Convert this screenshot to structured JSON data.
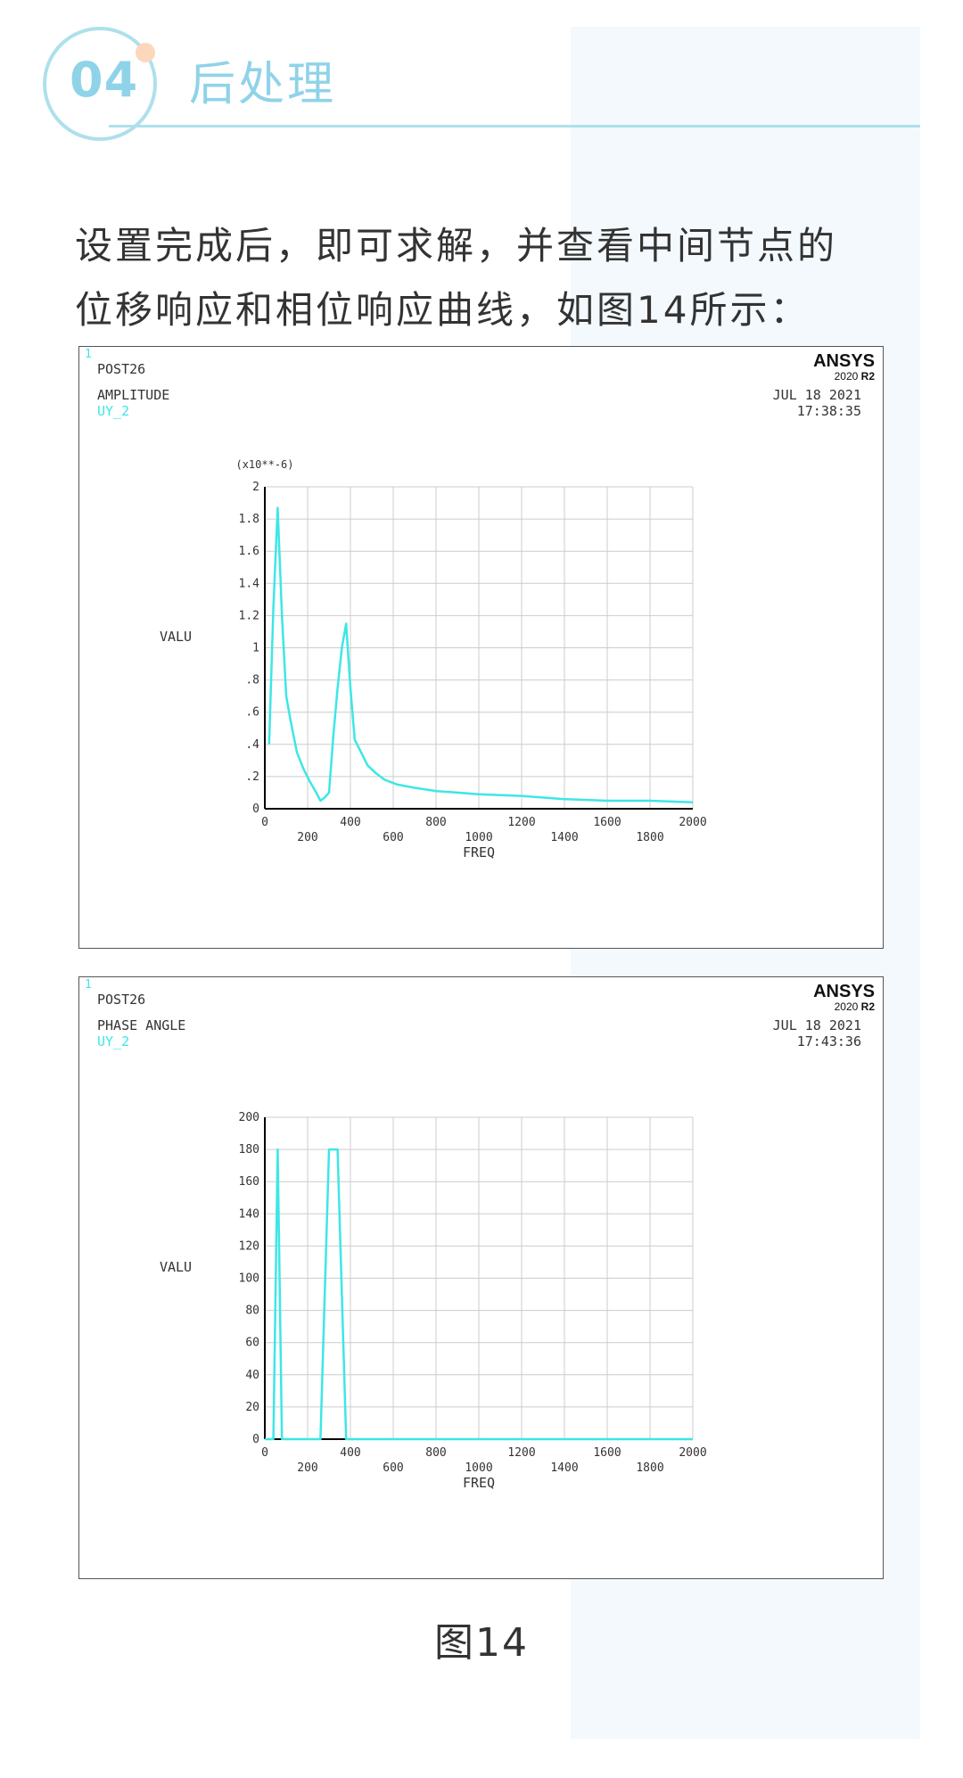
{
  "header": {
    "badge_number": "04",
    "title": "后处理"
  },
  "intro": {
    "line1": "设置完成后，即可求解，并查看中间节点的",
    "line2": "位移响应和相位响应曲线，如图14所示："
  },
  "caption": "图14",
  "colors": {
    "accent": "#8fd3e8",
    "curve": "#3ee6e6",
    "grid": "#cccccc"
  },
  "plots": [
    {
      "window_number": "1",
      "brand": "ANSYS",
      "version": "2020",
      "release": "R2",
      "post": "POST26",
      "quantity": "AMPLITUDE",
      "variable": "UY_2",
      "date": "JUL 18 2021",
      "time": "17:38:35",
      "multiplier": "(x10**-6)",
      "ylabel": "VALU",
      "xlabel": "FREQ",
      "yticks": [
        "0",
        ".2",
        ".4",
        ".6",
        ".8",
        "1",
        "1.2",
        "1.4",
        "1.6",
        "1.8",
        "2"
      ],
      "xticks": [
        "0",
        "200",
        "400",
        "600",
        "800",
        "1000",
        "1200",
        "1400",
        "1600",
        "1800",
        "2000"
      ]
    },
    {
      "window_number": "1",
      "brand": "ANSYS",
      "version": "2020",
      "release": "R2",
      "post": "POST26",
      "quantity": "PHASE ANGLE",
      "variable": "UY_2",
      "date": "JUL 18 2021",
      "time": "17:43:36",
      "multiplier": "",
      "ylabel": "VALU",
      "xlabel": "FREQ",
      "yticks": [
        "0",
        "20",
        "40",
        "60",
        "80",
        "100",
        "120",
        "140",
        "160",
        "180",
        "200"
      ],
      "xticks": [
        "0",
        "200",
        "400",
        "600",
        "800",
        "1000",
        "1200",
        "1400",
        "1600",
        "1800",
        "2000"
      ]
    }
  ],
  "chart_data": [
    {
      "type": "line",
      "title": "AMPLITUDE",
      "xlabel": "FREQ",
      "ylabel": "VALU",
      "xlim": [
        0,
        2000
      ],
      "ylim": [
        0,
        2
      ],
      "grid": true,
      "series": [
        {
          "name": "UY_2",
          "x": [
            20,
            40,
            60,
            80,
            100,
            120,
            150,
            180,
            210,
            240,
            260,
            280,
            300,
            320,
            340,
            360,
            380,
            400,
            420,
            450,
            480,
            520,
            560,
            620,
            700,
            800,
            900,
            1000,
            1200,
            1400,
            1600,
            1800,
            2000
          ],
          "y": [
            0.4,
            1.25,
            1.87,
            1.2,
            0.7,
            0.55,
            0.35,
            0.25,
            0.17,
            0.1,
            0.05,
            0.07,
            0.1,
            0.45,
            0.75,
            1.0,
            1.15,
            0.75,
            0.43,
            0.35,
            0.27,
            0.22,
            0.18,
            0.15,
            0.13,
            0.11,
            0.1,
            0.09,
            0.08,
            0.06,
            0.05,
            0.05,
            0.04
          ]
        }
      ]
    },
    {
      "type": "line",
      "title": "PHASE ANGLE",
      "xlabel": "FREQ",
      "ylabel": "VALU",
      "xlim": [
        0,
        2000
      ],
      "ylim": [
        0,
        200
      ],
      "grid": true,
      "series": [
        {
          "name": "UY_2",
          "x": [
            0,
            40,
            60,
            80,
            100,
            260,
            300,
            340,
            380,
            2000
          ],
          "y": [
            0,
            0,
            180,
            0,
            0,
            0,
            180,
            180,
            0,
            0
          ]
        }
      ]
    }
  ]
}
